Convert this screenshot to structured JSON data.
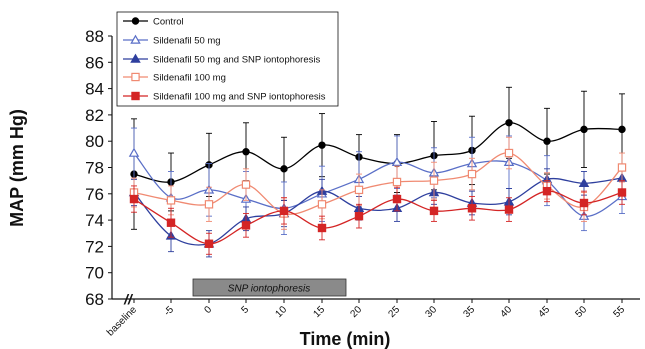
{
  "chart_data": {
    "type": "line",
    "title": "",
    "xlabel": "Time (min)",
    "ylabel": "MAP (mm Hg)",
    "ylim": [
      68,
      88
    ],
    "yticks": [
      "68",
      "70",
      "72",
      "74",
      "76",
      "78",
      "80",
      "82",
      "84",
      "86",
      "88"
    ],
    "x": [
      "baseline",
      "-5",
      "0",
      "5",
      "10",
      "15",
      "20",
      "25",
      "30",
      "35",
      "40",
      "45",
      "50",
      "55"
    ],
    "axis_break": "//",
    "annotation": "SNP iontophoresis",
    "legend_position": "top-left",
    "series": [
      {
        "name": "Control",
        "color": "#000000",
        "marker": "filled-circle",
        "values": [
          77.5,
          76.9,
          78.2,
          79.2,
          77.9,
          79.7,
          78.8,
          78.3,
          78.9,
          79.3,
          81.4,
          80.0,
          80.9,
          80.9
        ],
        "errors": [
          4.2,
          2.2,
          2.4,
          2.2,
          2.4,
          2.4,
          1.7,
          2.2,
          2.6,
          2.6,
          2.7,
          2.5,
          2.9,
          2.7
        ]
      },
      {
        "name": "Sildenafil 50 mg",
        "color": "#5a6fc7",
        "marker": "open-triangle",
        "values": [
          79.1,
          75.7,
          76.3,
          75.6,
          74.9,
          76.0,
          77.1,
          78.4,
          77.6,
          78.3,
          78.4,
          77.0,
          74.3,
          75.8
        ],
        "errors": [
          1.9,
          2.0,
          2.0,
          2.1,
          2.0,
          2.1,
          2.1,
          2.0,
          1.9,
          2.0,
          2.0,
          1.9,
          1.1,
          1.3
        ]
      },
      {
        "name": "Sildenafil 50 mg and SNP iontophoresis",
        "color": "#2e3f9e",
        "marker": "filled-triangle",
        "values": [
          76.1,
          72.8,
          72.2,
          74.1,
          74.5,
          76.2,
          74.9,
          74.9,
          76.1,
          75.3,
          75.4,
          77.1,
          76.8,
          77.2
        ],
        "errors": [
          1.0,
          1.2,
          1.0,
          0.9,
          1.0,
          0.9,
          0.9,
          1.0,
          0.9,
          0.9,
          1.0,
          0.8,
          0.9,
          0.9
        ]
      },
      {
        "name": "Sildenafil 100 mg",
        "color": "#f08a72",
        "marker": "open-square",
        "values": [
          76.1,
          75.5,
          75.2,
          76.7,
          74.5,
          75.2,
          76.3,
          76.9,
          77.0,
          77.5,
          79.1,
          76.6,
          75.0,
          78.0
        ],
        "errors": [
          1.1,
          1.1,
          1.3,
          1.2,
          1.2,
          1.1,
          1.2,
          1.2,
          1.4,
          1.2,
          1.2,
          1.0,
          1.1,
          1.1
        ]
      },
      {
        "name": "Sildenafil 100 mg and SNP iontophoresis",
        "color": "#d42525",
        "marker": "filled-square",
        "values": [
          75.6,
          73.8,
          72.2,
          73.6,
          74.7,
          73.4,
          74.3,
          75.6,
          74.7,
          74.9,
          74.8,
          76.2,
          75.3,
          76.1
        ],
        "errors": [
          1.0,
          1.1,
          0.8,
          0.9,
          1.0,
          0.9,
          0.9,
          0.9,
          0.8,
          0.9,
          0.9,
          0.8,
          0.9,
          0.9
        ]
      }
    ]
  }
}
